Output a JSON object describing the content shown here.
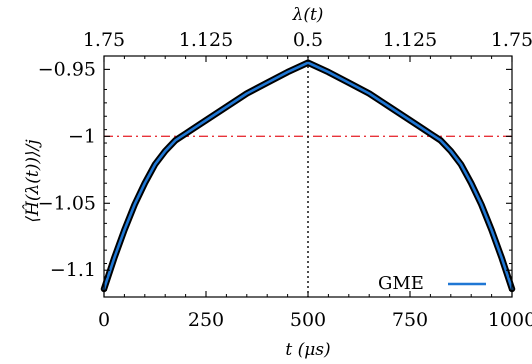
{
  "chart_data": {
    "type": "line",
    "xlabel": "t (μs)",
    "ylabel": "⟨Ĥ(λ(t))⟩/j",
    "top_xlabel": "λ(t)",
    "xlim": [
      0,
      1000
    ],
    "ylim": [
      -1.12,
      -0.94
    ],
    "x_ticks": [
      0,
      250,
      500,
      750,
      1000
    ],
    "x_tick_labels": [
      "0",
      "250",
      "500",
      "750",
      "1000"
    ],
    "top_ticks": [
      0,
      250,
      500,
      750,
      1000
    ],
    "top_tick_labels": [
      "1.75",
      "1.125",
      "0.5",
      "1.125",
      "1.75"
    ],
    "y_ticks": [
      -0.95,
      -1.0,
      -1.05,
      -1.1
    ],
    "y_tick_labels": [
      "−0.95",
      "−1",
      "−1.05",
      "−1.1"
    ],
    "grid": false,
    "legend_position": "bottom-right",
    "series": [
      {
        "name": "GME",
        "color": "#1f77d4",
        "x": [
          0,
          25,
          50,
          75,
          100,
          125,
          150,
          175,
          200,
          250,
          300,
          350,
          400,
          450,
          500,
          550,
          600,
          650,
          700,
          750,
          800,
          825,
          850,
          875,
          900,
          925,
          950,
          975,
          1000
        ],
        "y": [
          -1.114,
          -1.091,
          -1.07,
          -1.051,
          -1.035,
          -1.021,
          -1.011,
          -1.003,
          -0.998,
          -0.988,
          -0.978,
          -0.968,
          -0.96,
          -0.952,
          -0.945,
          -0.952,
          -0.96,
          -0.968,
          -0.978,
          -0.988,
          -0.998,
          -1.003,
          -1.011,
          -1.021,
          -1.035,
          -1.051,
          -1.07,
          -1.091,
          -1.114
        ]
      }
    ],
    "reference_lines": [
      {
        "orientation": "horizontal",
        "value": -1.0,
        "color": "#e8333a",
        "style": "dash-dot"
      },
      {
        "orientation": "vertical",
        "value": 500,
        "color": "#000000",
        "style": "dotted"
      }
    ]
  }
}
